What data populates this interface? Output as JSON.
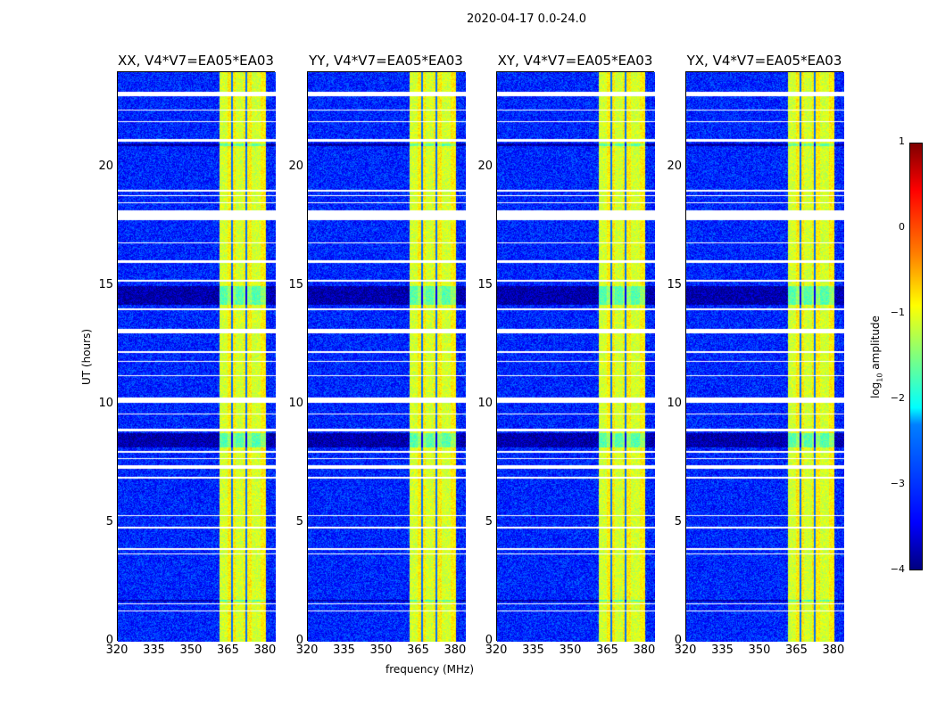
{
  "chart_data": {
    "type": "heatmap",
    "suptitle": "2020-04-17 0.0-24.0",
    "panels": [
      {
        "title": "XX, V4*V7=EA05*EA03"
      },
      {
        "title": "YY, V4*V7=EA05*EA03"
      },
      {
        "title": "XY, V4*V7=EA05*EA03"
      },
      {
        "title": "YX, V4*V7=EA05*EA03"
      }
    ],
    "xlabel": "frequency (MHz)",
    "ylabel": "UT (hours)",
    "xlim": [
      320,
      384
    ],
    "ylim": [
      0,
      24
    ],
    "xticks": [
      "320",
      "335",
      "350",
      "365",
      "380"
    ],
    "xtick_values": [
      320,
      335,
      350,
      365,
      380
    ],
    "yticks": [
      "0",
      "5",
      "10",
      "15",
      "20"
    ],
    "ytick_values": [
      0,
      5,
      10,
      15,
      20
    ],
    "colormap": "jet",
    "colorbar": {
      "label_main": "log",
      "label_sub": "10",
      "label_rest": " amplitude",
      "range": [
        -4,
        1
      ],
      "ticks": [
        "1",
        "0",
        "−1",
        "−2",
        "−3",
        "−4"
      ],
      "tick_values": [
        1,
        0,
        -1,
        -2,
        -3,
        -4
      ]
    },
    "background_level": -3.2,
    "strong_band_mhz": [
      361,
      380
    ],
    "strong_band_level": -1.0,
    "flagged_hours": [
      [
        23.0,
        23.2
      ],
      [
        22.4,
        22.45
      ],
      [
        21.9,
        21.95
      ],
      [
        21.1,
        21.2
      ],
      [
        19.0,
        19.05
      ],
      [
        18.8,
        18.85
      ],
      [
        18.5,
        18.55
      ],
      [
        17.8,
        18.2
      ],
      [
        16.8,
        16.85
      ],
      [
        16.0,
        16.1
      ],
      [
        15.2,
        15.25
      ],
      [
        14.0,
        14.05
      ],
      [
        13.0,
        13.2
      ],
      [
        12.2,
        12.25
      ],
      [
        11.8,
        11.85
      ],
      [
        11.2,
        11.25
      ],
      [
        10.1,
        10.3
      ],
      [
        9.6,
        9.65
      ],
      [
        8.9,
        9.0
      ],
      [
        8.0,
        8.05
      ],
      [
        7.7,
        7.75
      ],
      [
        7.3,
        7.45
      ],
      [
        6.9,
        6.95
      ],
      [
        5.3,
        5.35
      ],
      [
        4.8,
        4.85
      ],
      [
        3.9,
        3.95
      ],
      [
        3.7,
        3.75
      ],
      [
        1.6,
        1.65
      ],
      [
        1.3,
        1.35
      ]
    ],
    "dark_hours": [
      [
        14.2,
        15.0
      ],
      [
        8.2,
        8.8
      ],
      [
        20.9,
        21.0
      ],
      [
        1.7,
        1.8
      ]
    ]
  }
}
